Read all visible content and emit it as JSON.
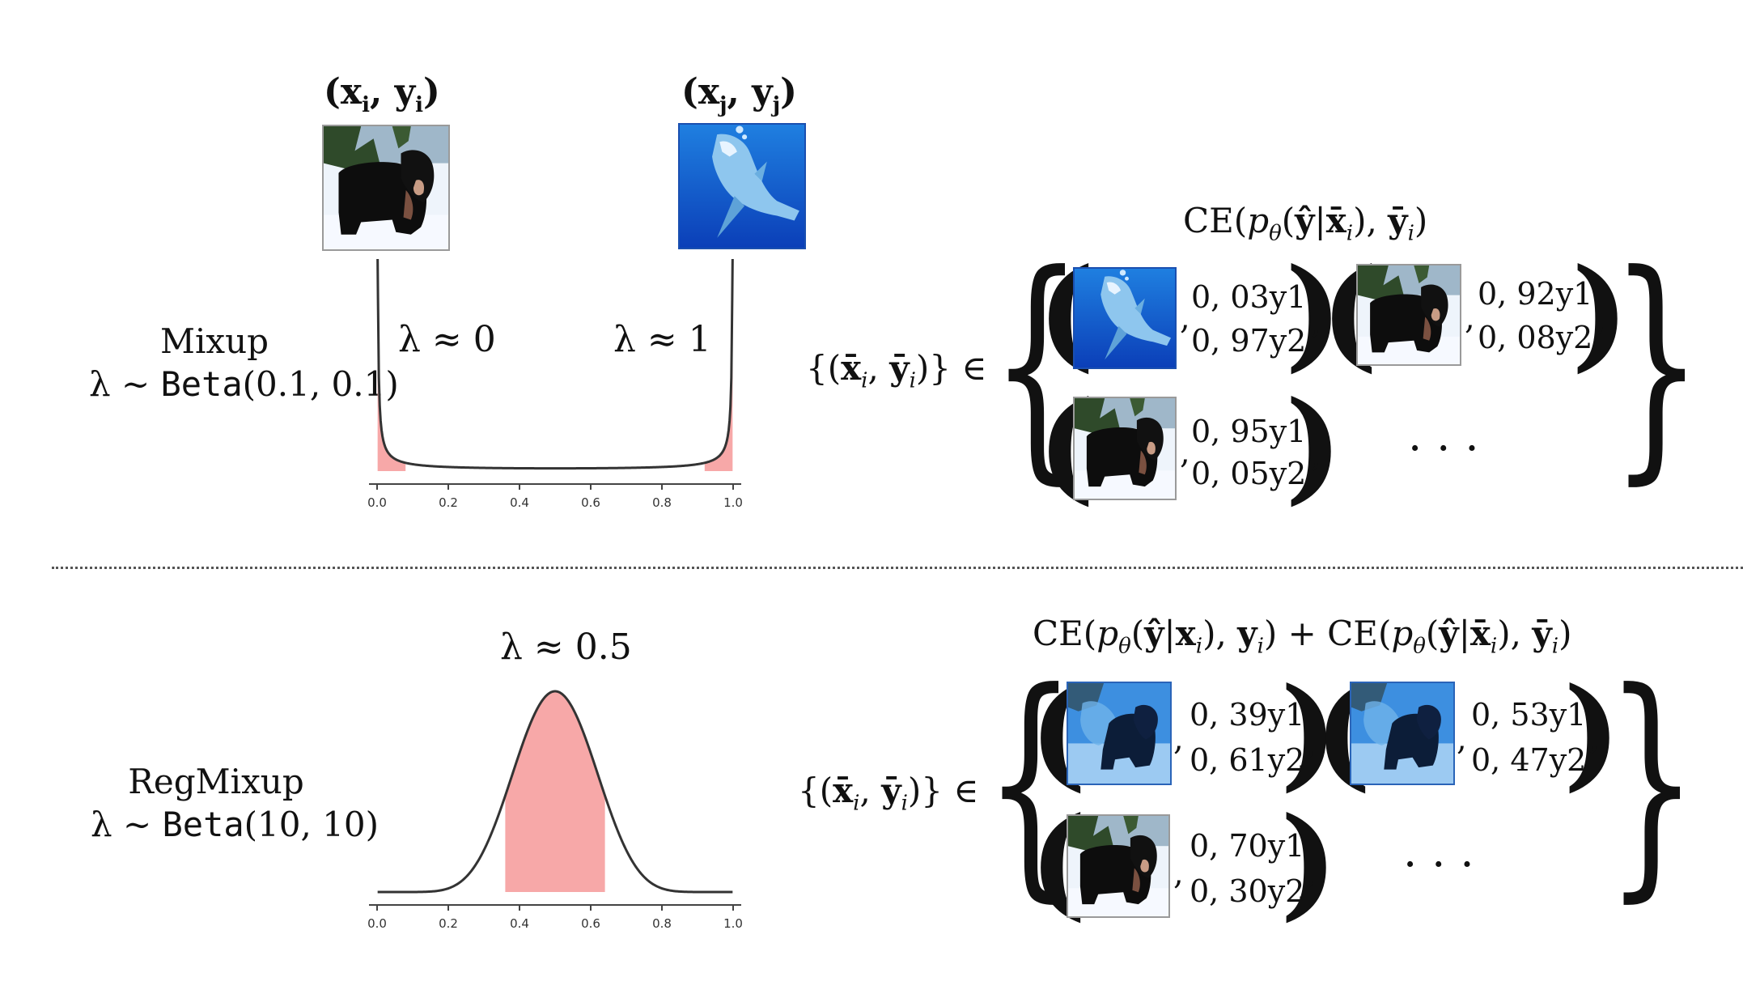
{
  "pair_i_label": "(xi, yi)",
  "pair_j_label": "(xj, yj)",
  "mixup": {
    "name": "Mixup",
    "dist": "λ ~ Beta(0.1, 0.1)",
    "lambda_left": "λ ≈ 0",
    "lambda_right": "λ ≈ 1",
    "loss": "CE(pθ(ŷ|x̄i), ȳi)",
    "set_prefix": "{(x̄i, ȳi)} ∈",
    "tuples": [
      {
        "image": "shark-image",
        "c1": "0, 03y1",
        "c2": "0, 97y2"
      },
      {
        "image": "dog-image",
        "c1": "0, 92y1",
        "c2": "0, 08y2"
      },
      {
        "image": "dog-image",
        "c1": "0, 95y1",
        "c2": "0, 05y2"
      }
    ],
    "ellipsis": "...",
    "axis_ticks": [
      "0.0",
      "0.2",
      "0.4",
      "0.6",
      "0.8",
      "1.0"
    ]
  },
  "regmixup": {
    "name": "RegMixup",
    "dist": "λ ~ Beta(10, 10)",
    "lambda_mid": "λ ≈ 0.5",
    "loss": "CE(pθ(ŷ|xi), yi) + CE(pθ(ŷ|x̄i), ȳi)",
    "set_prefix": "{(x̄i, ȳi)} ∈",
    "tuples": [
      {
        "image": "mixed-image",
        "c1": "0, 39y1",
        "c2": "0, 61y2"
      },
      {
        "image": "mixed-image",
        "c1": "0, 53y1",
        "c2": "0, 47y2"
      },
      {
        "image": "dog-image",
        "c1": "0, 70y1",
        "c2": "0, 30y2"
      }
    ],
    "ellipsis": "...",
    "axis_ticks": [
      "0.0",
      "0.2",
      "0.4",
      "0.6",
      "0.8",
      "1.0"
    ]
  },
  "chart_data": [
    {
      "type": "area",
      "title": "",
      "distribution": "Beta(0.1, 0.1)",
      "alpha": 0.1,
      "beta": 0.1,
      "xlim": [
        0,
        1
      ],
      "x_ticks": [
        0.0,
        0.2,
        0.4,
        0.6,
        0.8,
        1.0
      ],
      "shaded_ranges": [
        [
          0.0,
          0.08
        ],
        [
          0.92,
          1.0
        ]
      ],
      "shade_color": "#f7a8a8",
      "line_color": "#333333"
    },
    {
      "type": "area",
      "title": "",
      "distribution": "Beta(10, 10)",
      "alpha": 10,
      "beta": 10,
      "xlim": [
        0,
        1
      ],
      "x_ticks": [
        0.0,
        0.2,
        0.4,
        0.6,
        0.8,
        1.0
      ],
      "shaded_ranges": [
        [
          0.36,
          0.64
        ]
      ],
      "shade_color": "#f7a8a8",
      "line_color": "#333333"
    }
  ]
}
